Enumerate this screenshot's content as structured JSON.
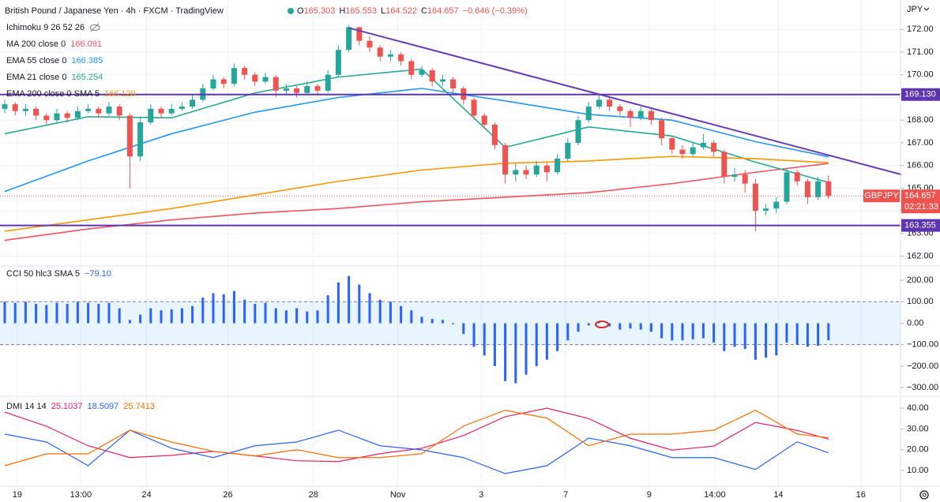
{
  "chart_data": [
    {
      "type": "candlestick",
      "title": "British Pound / Japanese Yen · 4h · FXCM · TradingView",
      "header_keys": [
        "O",
        "H",
        "L",
        "C"
      ],
      "change": "−0.646 (−0.39%)",
      "indicator": "Ichimoku 9 26 52 26",
      "currency": "JPY",
      "symbol": "GBPJPY",
      "countdown": "02:21:33",
      "up_color": "#26a69a",
      "down_color": "#ef5350",
      "ylim": [
        161.6,
        173.3
      ],
      "yticks": [
        {
          "value": 162,
          "label": "162.00"
        },
        {
          "value": 163,
          "label": "163.00"
        },
        {
          "value": 164,
          "label": "164.00"
        },
        {
          "value": 165,
          "label": "165.00"
        },
        {
          "value": 166,
          "label": "166.00"
        },
        {
          "value": 167,
          "label": "167.00"
        },
        {
          "value": 168,
          "label": "168.00"
        },
        {
          "value": 169,
          "label": "169.00"
        },
        {
          "value": 170,
          "label": "170.00"
        },
        {
          "value": 171,
          "label": "171.00"
        },
        {
          "value": 172,
          "label": "172.00"
        }
      ],
      "xticks": [
        {
          "value": 1.2,
          "label": "19"
        },
        {
          "value": 7.3,
          "label": "13:00"
        },
        {
          "value": 13.6,
          "label": "24"
        },
        {
          "value": 21.4,
          "label": "26"
        },
        {
          "value": 29.6,
          "label": "28"
        },
        {
          "value": 37.7,
          "label": "Nov"
        },
        {
          "value": 45.7,
          "label": "3"
        },
        {
          "value": 53.8,
          "label": "7"
        },
        {
          "value": 61.8,
          "label": "9"
        },
        {
          "value": 68.1,
          "label": "14:00"
        },
        {
          "value": 74.2,
          "label": "14"
        },
        {
          "value": 82.1,
          "label": "16"
        }
      ],
      "ohlc": [
        [
          168.5,
          168.9,
          168.3,
          168.7
        ],
        [
          168.7,
          168.8,
          168.2,
          168.4
        ],
        [
          168.4,
          168.7,
          168.2,
          168.5
        ],
        [
          168.5,
          168.6,
          168.0,
          168.2
        ],
        [
          168.2,
          168.3,
          167.8,
          168.0
        ],
        [
          168.0,
          168.5,
          167.9,
          168.3
        ],
        [
          168.3,
          168.4,
          167.9,
          168.1
        ],
        [
          168.1,
          168.6,
          168.0,
          168.4
        ],
        [
          168.4,
          168.7,
          168.3,
          168.5
        ],
        [
          168.5,
          168.6,
          168.1,
          168.3
        ],
        [
          168.3,
          168.8,
          168.2,
          168.6
        ],
        [
          168.6,
          168.7,
          168.0,
          168.2
        ],
        [
          168.2,
          168.3,
          165.0,
          166.4
        ],
        [
          166.4,
          168.1,
          166.2,
          167.9
        ],
        [
          167.9,
          168.7,
          167.8,
          168.5
        ],
        [
          168.5,
          168.6,
          168.1,
          168.3
        ],
        [
          168.3,
          168.7,
          168.2,
          168.5
        ],
        [
          168.5,
          168.8,
          168.4,
          168.6
        ],
        [
          168.6,
          169.1,
          168.5,
          168.9
        ],
        [
          168.9,
          169.6,
          168.8,
          169.4
        ],
        [
          169.4,
          170.0,
          169.3,
          169.8
        ],
        [
          169.8,
          169.9,
          169.4,
          169.6
        ],
        [
          169.6,
          170.5,
          169.5,
          170.3
        ],
        [
          170.3,
          170.4,
          169.8,
          170.0
        ],
        [
          170.0,
          170.1,
          169.5,
          169.7
        ],
        [
          169.7,
          170.1,
          169.6,
          169.9
        ],
        [
          169.9,
          170.0,
          169.0,
          169.3
        ],
        [
          169.3,
          169.6,
          169.1,
          169.4
        ],
        [
          169.4,
          169.5,
          169.0,
          169.2
        ],
        [
          169.2,
          169.7,
          169.1,
          169.5
        ],
        [
          169.5,
          169.6,
          169.1,
          169.3
        ],
        [
          169.3,
          170.2,
          169.2,
          170.0
        ],
        [
          170.0,
          171.3,
          169.9,
          171.1
        ],
        [
          171.1,
          172.2,
          171.0,
          172.1
        ],
        [
          172.1,
          172.1,
          171.3,
          171.5
        ],
        [
          171.5,
          171.7,
          171.0,
          171.2
        ],
        [
          171.2,
          171.3,
          170.6,
          170.8
        ],
        [
          170.8,
          171.1,
          170.6,
          170.9
        ],
        [
          170.9,
          171.0,
          170.4,
          170.6
        ],
        [
          170.6,
          170.7,
          169.8,
          170.0
        ],
        [
          170.0,
          170.4,
          169.9,
          170.2
        ],
        [
          170.2,
          170.3,
          169.5,
          169.7
        ],
        [
          169.7,
          170.0,
          169.5,
          169.8
        ],
        [
          169.8,
          169.9,
          169.2,
          169.4
        ],
        [
          169.4,
          169.5,
          168.7,
          168.9
        ],
        [
          168.9,
          169.0,
          168.0,
          168.2
        ],
        [
          168.2,
          168.3,
          167.6,
          167.8
        ],
        [
          167.8,
          167.9,
          166.7,
          166.9
        ],
        [
          166.9,
          167.0,
          165.2,
          165.6
        ],
        [
          165.6,
          166.1,
          165.3,
          165.8
        ],
        [
          165.8,
          166.0,
          165.4,
          165.6
        ],
        [
          165.6,
          166.2,
          165.5,
          166.0
        ],
        [
          166.0,
          166.1,
          165.3,
          165.7
        ],
        [
          165.7,
          166.5,
          165.6,
          166.3
        ],
        [
          166.3,
          167.2,
          166.2,
          167.0
        ],
        [
          167.0,
          168.2,
          166.9,
          168.0
        ],
        [
          168.0,
          168.8,
          167.9,
          168.6
        ],
        [
          168.6,
          169.1,
          168.5,
          168.9
        ],
        [
          168.9,
          169.0,
          168.4,
          168.6
        ],
        [
          168.6,
          168.7,
          168.2,
          168.4
        ],
        [
          168.4,
          168.5,
          167.7,
          168.1
        ],
        [
          168.1,
          168.6,
          168.0,
          168.4
        ],
        [
          168.4,
          168.5,
          167.8,
          168.0
        ],
        [
          168.0,
          168.1,
          166.9,
          167.2
        ],
        [
          167.2,
          167.3,
          166.5,
          166.7
        ],
        [
          166.7,
          166.9,
          166.3,
          166.5
        ],
        [
          166.5,
          167.0,
          166.4,
          166.8
        ],
        [
          166.8,
          167.4,
          166.7,
          167.0
        ],
        [
          167.0,
          167.1,
          166.4,
          166.6
        ],
        [
          166.6,
          166.7,
          165.2,
          165.5
        ],
        [
          165.5,
          165.9,
          165.3,
          165.6
        ],
        [
          165.6,
          165.8,
          164.8,
          165.2
        ],
        [
          165.2,
          165.4,
          163.1,
          164.0
        ],
        [
          164.0,
          164.3,
          163.8,
          164.1
        ],
        [
          164.1,
          164.6,
          163.9,
          164.4
        ],
        [
          164.4,
          165.9,
          164.3,
          165.7
        ],
        [
          165.7,
          165.8,
          165.1,
          165.3
        ],
        [
          165.3,
          165.4,
          164.3,
          164.6
        ],
        [
          164.6,
          165.5,
          164.5,
          165.303
        ],
        [
          165.303,
          165.553,
          164.522,
          164.657
        ]
      ],
      "series": [
        {
          "name": "MA 200 close 0",
          "color": "#f7525f",
          "last_label": "166.091",
          "x": [
            0,
            8,
            16,
            24,
            32,
            40,
            48,
            56,
            64,
            72,
            79
          ],
          "values": [
            162.7,
            163.2,
            163.6,
            163.9,
            164.1,
            164.4,
            164.6,
            164.8,
            165.2,
            165.7,
            166.091
          ]
        },
        {
          "name": "EMA 55 close 0",
          "color": "#2196f3",
          "last_label": "166.385",
          "x": [
            0,
            8,
            16,
            24,
            32,
            40,
            48,
            56,
            64,
            72,
            79
          ],
          "values": [
            164.85,
            166.2,
            167.4,
            168.35,
            169.0,
            169.4,
            168.85,
            168.25,
            168.0,
            167.05,
            166.385
          ]
        },
        {
          "name": "EMA 21 close 0",
          "color": "#22ab94",
          "last_label": "165.254",
          "x": [
            0,
            8,
            16,
            24,
            32,
            40,
            48,
            56,
            64,
            72,
            79
          ],
          "values": [
            167.4,
            168.15,
            168.1,
            169.2,
            169.9,
            170.25,
            166.8,
            167.7,
            167.3,
            166.15,
            165.254
          ]
        },
        {
          "name": "EMA 200 close 0 SMA 5",
          "color": "#ff9800",
          "last_label": "166.120",
          "x": [
            0,
            8,
            16,
            24,
            32,
            40,
            48,
            56,
            64,
            72,
            79
          ],
          "values": [
            163.1,
            163.6,
            164.1,
            164.7,
            165.3,
            165.8,
            166.1,
            166.2,
            166.4,
            166.3,
            166.12
          ]
        }
      ],
      "trendline": {
        "color": "#673ab7",
        "x": [
          33,
          86
        ],
        "values": [
          172.07,
          165.6
        ]
      },
      "levels": [
        {
          "value": 169.13,
          "label": "169.130"
        },
        {
          "value": 163.355,
          "label": "163.355"
        }
      ],
      "level_color": "#5e35b1"
    },
    {
      "type": "bar",
      "title": "CCI 50 hlc3 SMA 5",
      "last_label": "−79.10",
      "color": "#2962ff",
      "band": [
        -100,
        100
      ],
      "ylim": [
        -333,
        263
      ],
      "yticks": [
        {
          "value": 200,
          "label": "200.00"
        },
        {
          "value": 100,
          "label": "100.00"
        },
        {
          "value": 0,
          "label": "0.00"
        },
        {
          "value": -100,
          "label": "−100.00"
        },
        {
          "value": -200,
          "label": "−200.00"
        },
        {
          "value": -300,
          "label": "−300.00"
        }
      ],
      "values": [
        100,
        95,
        100,
        90,
        85,
        95,
        90,
        100,
        95,
        90,
        95,
        70,
        15,
        40,
        70,
        60,
        65,
        70,
        80,
        120,
        140,
        135,
        150,
        110,
        90,
        95,
        70,
        60,
        70,
        55,
        60,
        130,
        190,
        220,
        180,
        140,
        110,
        100,
        80,
        60,
        30,
        20,
        15,
        -5,
        -50,
        -110,
        -150,
        -200,
        -270,
        -280,
        -240,
        -200,
        -170,
        -130,
        -80,
        -40,
        -10,
        5,
        -15,
        -30,
        -25,
        -30,
        -40,
        -70,
        -80,
        -80,
        -75,
        -70,
        -90,
        -130,
        -110,
        -120,
        -170,
        -160,
        -150,
        -90,
        -100,
        -110,
        -105,
        -79.1
      ]
    },
    {
      "type": "line",
      "title": "DMI 14 14",
      "ylim": [
        2.8,
        44.6
      ],
      "yticks": [
        {
          "value": 40,
          "label": "40.00"
        },
        {
          "value": 30,
          "label": "30.00"
        },
        {
          "value": 20,
          "label": "20.00"
        },
        {
          "value": 10,
          "label": "10.00"
        }
      ],
      "series": [
        {
          "color": "#e91e63",
          "x": [
            0,
            4,
            8,
            12,
            16,
            20,
            24,
            28,
            32,
            36,
            40,
            44,
            48,
            52,
            56,
            60,
            64,
            68,
            72,
            76,
            79
          ],
          "values": [
            38.1,
            31.3,
            21.9,
            16.2,
            17.3,
            19.2,
            17,
            14.7,
            14.3,
            18.1,
            20.7,
            26.8,
            35.9,
            40,
            35,
            25.5,
            19.8,
            21.7,
            33.1,
            29.3,
            25.1037
          ]
        },
        {
          "color": "#2962ff",
          "x": [
            0,
            4,
            8,
            12,
            16,
            20,
            24,
            28,
            32,
            36,
            40,
            44,
            48,
            52,
            56,
            60,
            64,
            68,
            72,
            76,
            79
          ],
          "values": [
            27.5,
            23.7,
            12.3,
            29.4,
            20.7,
            16.2,
            21.9,
            23.7,
            29.4,
            21.9,
            19.9,
            16.2,
            8.5,
            12.3,
            25.6,
            21.9,
            16.2,
            16.2,
            10.5,
            23.8,
            18.5097
          ]
        },
        {
          "color": "#ff6d00",
          "x": [
            0,
            4,
            8,
            12,
            16,
            20,
            24,
            28,
            32,
            36,
            40,
            44,
            48,
            52,
            56,
            60,
            64,
            68,
            72,
            76,
            79
          ],
          "values": [
            12.3,
            18,
            18,
            29.4,
            23.7,
            19.2,
            17,
            20,
            16.2,
            16.2,
            18.1,
            31.4,
            39,
            35.2,
            21.9,
            27.5,
            27.5,
            29.4,
            39,
            27.5,
            25.7413
          ]
        }
      ]
    }
  ]
}
